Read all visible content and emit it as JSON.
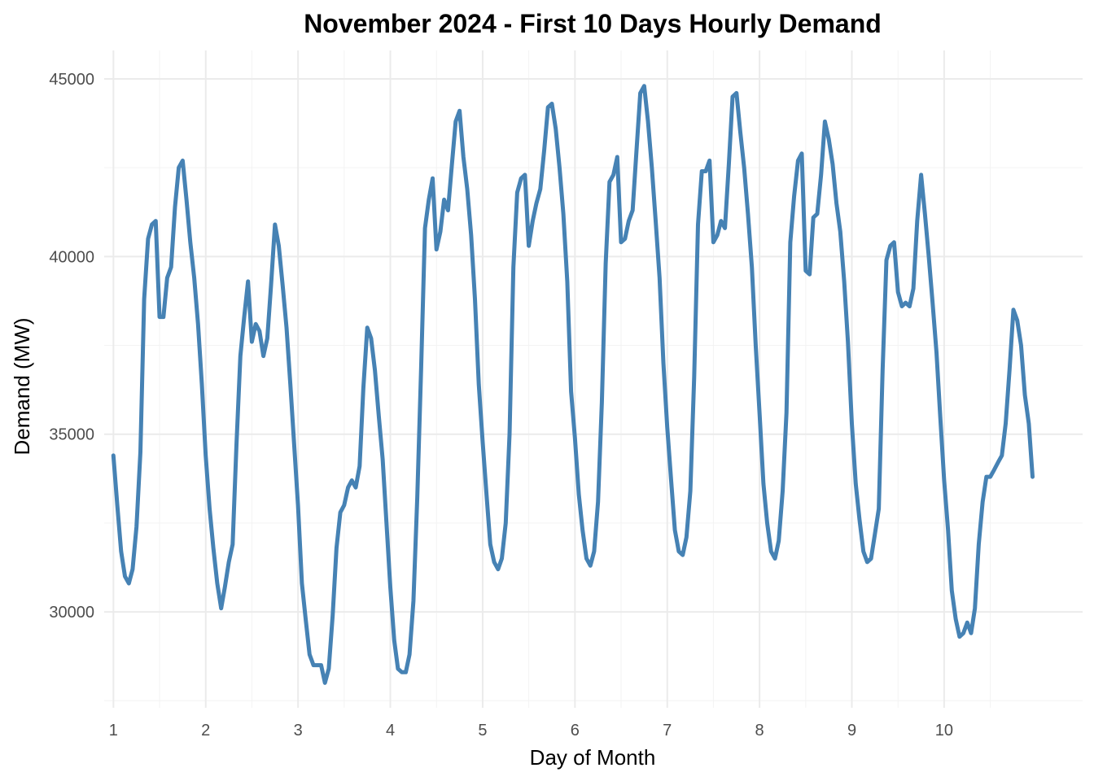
{
  "chart_data": {
    "type": "line",
    "title": "November 2024 - First 10 Days Hourly Demand",
    "xlabel": "Day of Month",
    "ylabel": "Demand (MW)",
    "xlim": [
      0.9,
      11.5
    ],
    "ylim": [
      27300,
      45800
    ],
    "x_ticks": [
      1,
      2,
      3,
      4,
      5,
      6,
      7,
      8,
      9,
      10
    ],
    "x_tick_labels": [
      "1",
      "2",
      "3",
      "4",
      "5",
      "6",
      "7",
      "8",
      "9",
      "10"
    ],
    "y_ticks": [
      30000,
      35000,
      40000,
      45000
    ],
    "y_tick_labels": [
      "30000",
      "35000",
      "40000",
      "45000"
    ],
    "grid": true,
    "legend": "none",
    "line_color": "#4682B4",
    "series": [
      {
        "x": [
          1.0,
          1.042,
          1.083,
          1.125,
          1.167,
          1.208,
          1.25,
          1.292,
          1.333,
          1.375,
          1.417,
          1.458,
          1.5,
          1.542,
          1.583,
          1.625,
          1.667,
          1.708,
          1.75,
          1.792,
          1.833,
          1.875,
          1.917,
          1.958,
          2.0,
          2.042,
          2.083,
          2.125,
          2.167,
          2.208,
          2.25,
          2.292,
          2.333,
          2.375,
          2.417,
          2.458,
          2.5,
          2.542,
          2.583,
          2.625,
          2.667,
          2.708,
          2.75,
          2.792,
          2.833,
          2.875,
          2.917,
          2.958,
          3.0,
          3.042,
          3.083,
          3.125,
          3.167,
          3.208,
          3.25,
          3.292,
          3.333,
          3.375,
          3.417,
          3.458,
          3.5,
          3.542,
          3.583,
          3.625,
          3.667,
          3.708,
          3.75,
          3.792,
          3.833,
          3.875,
          3.917,
          3.958,
          4.0,
          4.042,
          4.083,
          4.125,
          4.167,
          4.208,
          4.25,
          4.292,
          4.333,
          4.375,
          4.417,
          4.458,
          4.5,
          4.542,
          4.583,
          4.625,
          4.667,
          4.708,
          4.75,
          4.792,
          4.833,
          4.875,
          4.917,
          4.958,
          5.0,
          5.042,
          5.083,
          5.125,
          5.167,
          5.208,
          5.25,
          5.292,
          5.333,
          5.375,
          5.417,
          5.458,
          5.5,
          5.542,
          5.583,
          5.625,
          5.667,
          5.708,
          5.75,
          5.792,
          5.833,
          5.875,
          5.917,
          5.958,
          6.0,
          6.042,
          6.083,
          6.125,
          6.167,
          6.208,
          6.25,
          6.292,
          6.333,
          6.375,
          6.417,
          6.458,
          6.5,
          6.542,
          6.583,
          6.625,
          6.667,
          6.708,
          6.75,
          6.792,
          6.833,
          6.875,
          6.917,
          6.958,
          7.0,
          7.042,
          7.083,
          7.125,
          7.167,
          7.208,
          7.25,
          7.292,
          7.333,
          7.375,
          7.417,
          7.458,
          7.5,
          7.542,
          7.583,
          7.625,
          7.667,
          7.708,
          7.75,
          7.792,
          7.833,
          7.875,
          7.917,
          7.958,
          8.0,
          8.042,
          8.083,
          8.125,
          8.167,
          8.208,
          8.25,
          8.292,
          8.333,
          8.375,
          8.417,
          8.458,
          8.5,
          8.542,
          8.583,
          8.625,
          8.667,
          8.708,
          8.75,
          8.792,
          8.833,
          8.875,
          8.917,
          8.958,
          9.0,
          9.042,
          9.083,
          9.125,
          9.167,
          9.208,
          9.25,
          9.292,
          9.333,
          9.375,
          9.417,
          9.458,
          9.5,
          9.542,
          9.583,
          9.625,
          9.667,
          9.708,
          9.75,
          9.792,
          9.833,
          9.875,
          9.917,
          9.958,
          10.0,
          10.042,
          10.083,
          10.125,
          10.167,
          10.208,
          10.25,
          10.292,
          10.333,
          10.375,
          10.417,
          10.458,
          10.5,
          10.542,
          10.583,
          10.625,
          10.667,
          10.708,
          10.75,
          10.792,
          10.833,
          10.875,
          10.917,
          10.958
        ],
        "y": [
          34400,
          33000,
          31700,
          31000,
          30800,
          31200,
          32400,
          34500,
          38800,
          40500,
          40900,
          41000,
          38300,
          38300,
          39400,
          39700,
          41400,
          42500,
          42700,
          41600,
          40400,
          39400,
          38100,
          36400,
          34400,
          32900,
          31800,
          30800,
          30100,
          30700,
          31400,
          31900,
          34700,
          37200,
          38300,
          39300,
          37600,
          38100,
          37900,
          37200,
          37700,
          39200,
          40900,
          40300,
          39200,
          38000,
          36400,
          34700,
          33000,
          30800,
          29800,
          28800,
          28500,
          28500,
          28500,
          28000,
          28400,
          29900,
          31800,
          32800,
          33000,
          33500,
          33700,
          33500,
          34100,
          36300,
          38000,
          37700,
          36800,
          35500,
          34300,
          32500,
          30700,
          29200,
          28400,
          28300,
          28300,
          28800,
          30300,
          33200,
          36800,
          40800,
          41600,
          42200,
          40200,
          40700,
          41600,
          41300,
          42600,
          43800,
          44100,
          42800,
          41900,
          40600,
          38800,
          36400,
          34800,
          33300,
          31900,
          31400,
          31200,
          31500,
          32500,
          35000,
          39700,
          41800,
          42200,
          42300,
          40300,
          41000,
          41500,
          41900,
          43000,
          44200,
          44300,
          43600,
          42500,
          41200,
          39300,
          36200,
          34900,
          33300,
          32300,
          31500,
          31300,
          31700,
          33100,
          35900,
          39800,
          42100,
          42300,
          42800,
          40400,
          40500,
          41000,
          41300,
          43000,
          44600,
          44800,
          43800,
          42500,
          41000,
          39400,
          37000,
          35200,
          33700,
          32300,
          31700,
          31600,
          32100,
          33400,
          36600,
          40900,
          42400,
          42400,
          42700,
          40400,
          40600,
          41000,
          40800,
          42600,
          44500,
          44600,
          43500,
          42500,
          41200,
          39700,
          37500,
          35600,
          33600,
          32500,
          31700,
          31500,
          32000,
          33400,
          35600,
          40400,
          41700,
          42700,
          42900,
          39600,
          39500,
          41100,
          41200,
          42300,
          43800,
          43300,
          42600,
          41500,
          40700,
          39300,
          37600,
          35300,
          33600,
          32600,
          31700,
          31400,
          31500,
          32200,
          32900,
          36800,
          39900,
          40300,
          40400,
          39000,
          38600,
          38700,
          38600,
          39100,
          41000,
          42300,
          41200,
          40000,
          38700,
          37300,
          35500,
          33700,
          32300,
          30600,
          29800,
          29300,
          29400,
          29700,
          29400,
          30100,
          31900,
          33100,
          33800,
          33800,
          34000,
          34200,
          34400,
          35300,
          36800,
          38500,
          38200,
          37500,
          36100,
          35300,
          33800
        ]
      }
    ]
  }
}
